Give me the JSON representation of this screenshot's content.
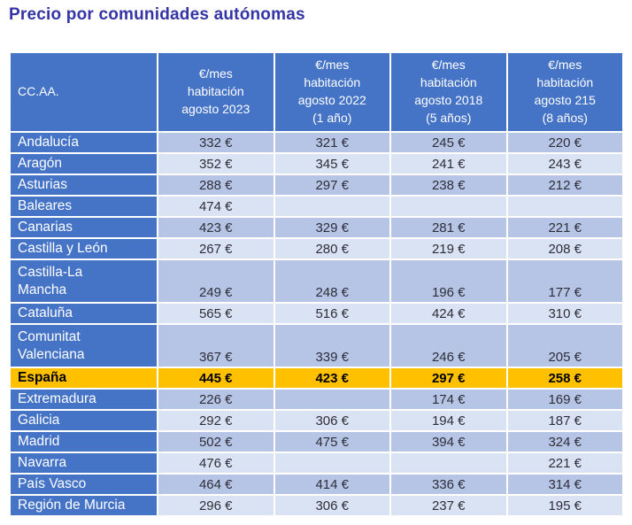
{
  "title": "Precio por comunidades autónomas",
  "colors": {
    "title_text": "#3434A6",
    "header_bg": "#4574C7",
    "name_column_bg": "#4574C7",
    "stripe_dark": "#B6C5E6",
    "stripe_light": "#DAE3F4",
    "highlight_gold": "#FFC000",
    "header_text": "#FFFFFF",
    "value_text": "#2E2E38"
  },
  "table": {
    "headers": [
      "CC.AA.",
      "€/mes\nhabitación\nagosto 2023",
      "€/mes\nhabitación\nagosto 2022\n(1 año)",
      "€/mes\nhabitación\nagosto 2018\n(5 años)",
      "€/mes\nhabitación\nagosto 215\n(8 años)"
    ],
    "rows": [
      {
        "name": "Andalucía",
        "display": [
          "332 €",
          "321 €",
          "245 €",
          "220 €"
        ],
        "shade": "dark",
        "wrap": false
      },
      {
        "name": "Aragón",
        "display": [
          "352 €",
          "345 €",
          "241 €",
          "243 €"
        ],
        "shade": "light",
        "wrap": false
      },
      {
        "name": "Asturias",
        "display": [
          "288 €",
          "297 €",
          "238 €",
          "212 €"
        ],
        "shade": "dark",
        "wrap": false
      },
      {
        "name": "Baleares",
        "display": [
          "474 €",
          "",
          "",
          ""
        ],
        "shade": "light",
        "wrap": false
      },
      {
        "name": "Canarias",
        "display": [
          "423 €",
          "329 €",
          "281 €",
          "221 €"
        ],
        "shade": "dark",
        "wrap": false
      },
      {
        "name": "Castilla y León",
        "display": [
          "267 €",
          "280 €",
          "219 €",
          "208 €"
        ],
        "shade": "light",
        "wrap": false
      },
      {
        "name": "Castilla-La\nMancha",
        "display": [
          "249 €",
          "248 €",
          "196 €",
          "177 €"
        ],
        "shade": "dark",
        "wrap": true
      },
      {
        "name": "Cataluña",
        "display": [
          "565 €",
          "516 €",
          "424 €",
          "310 €"
        ],
        "shade": "light",
        "wrap": false
      },
      {
        "name": "Comunitat\nValenciana",
        "display": [
          "367 €",
          "339 €",
          "246 €",
          "205 €"
        ],
        "shade": "dark",
        "wrap": true
      },
      {
        "name": "España",
        "display": [
          "445 €",
          "423 €",
          "297 €",
          "258 €"
        ],
        "shade": "gold",
        "wrap": false
      },
      {
        "name": "Extremadura",
        "display": [
          "226 €",
          "",
          "174 €",
          "169 €"
        ],
        "shade": "dark",
        "wrap": false
      },
      {
        "name": "Galicia",
        "display": [
          "292 €",
          "306 €",
          "194 €",
          "187 €"
        ],
        "shade": "light",
        "wrap": false
      },
      {
        "name": "Madrid",
        "display": [
          "502 €",
          "475 €",
          "394 €",
          "324 €"
        ],
        "shade": "dark",
        "wrap": false
      },
      {
        "name": "Navarra",
        "display": [
          "476 €",
          "",
          "",
          "221 €"
        ],
        "shade": "light",
        "wrap": false
      },
      {
        "name": "País Vasco",
        "display": [
          "464 €",
          "414 €",
          "336 €",
          "314 €"
        ],
        "shade": "dark",
        "wrap": false
      },
      {
        "name": "Región de Murcia",
        "display": [
          "296 €",
          "306 €",
          "237 €",
          "195 €"
        ],
        "shade": "light",
        "wrap": false
      }
    ]
  },
  "chart_data": {
    "type": "table",
    "title": "Precio por comunidades autónomas",
    "columns": [
      "CC.AA.",
      "€/mes habitación agosto 2023",
      "€/mes habitación agosto 2022 (1 año)",
      "€/mes habitación agosto 2018 (5 años)",
      "€/mes habitación agosto 215 (8 años)"
    ],
    "unit": "€/mes",
    "rows": [
      [
        "Andalucía",
        332,
        321,
        245,
        220
      ],
      [
        "Aragón",
        352,
        345,
        241,
        243
      ],
      [
        "Asturias",
        288,
        297,
        238,
        212
      ],
      [
        "Baleares",
        474,
        null,
        null,
        null
      ],
      [
        "Canarias",
        423,
        329,
        281,
        221
      ],
      [
        "Castilla y León",
        267,
        280,
        219,
        208
      ],
      [
        "Castilla-La Mancha",
        249,
        248,
        196,
        177
      ],
      [
        "Cataluña",
        565,
        516,
        424,
        310
      ],
      [
        "Comunitat Valenciana",
        367,
        339,
        246,
        205
      ],
      [
        "España",
        445,
        423,
        297,
        258
      ],
      [
        "Extremadura",
        226,
        null,
        174,
        169
      ],
      [
        "Galicia",
        292,
        306,
        194,
        187
      ],
      [
        "Madrid",
        502,
        475,
        394,
        324
      ],
      [
        "Navarra",
        476,
        null,
        null,
        221
      ],
      [
        "País Vasco",
        464,
        414,
        336,
        314
      ],
      [
        "Región de Murcia",
        296,
        306,
        237,
        195
      ]
    ],
    "highlight_row": "España"
  }
}
